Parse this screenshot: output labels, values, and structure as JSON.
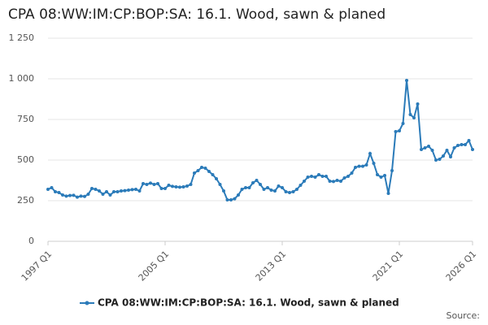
{
  "chart_data": {
    "type": "line",
    "title": "CPA 08:WW:IM:CP:BOP:SA: 16.1. Wood, sawn & planed",
    "source": "Source:",
    "categories": [
      "1997 Q1",
      null,
      null,
      null,
      null,
      null,
      null,
      null,
      null,
      null,
      null,
      null,
      null,
      null,
      null,
      null,
      null,
      null,
      null,
      null,
      null,
      null,
      null,
      null,
      null,
      null,
      null,
      null,
      null,
      null,
      null,
      null,
      "2005 Q1",
      null,
      null,
      null,
      null,
      null,
      null,
      null,
      null,
      null,
      null,
      null,
      null,
      null,
      null,
      null,
      null,
      null,
      null,
      null,
      null,
      null,
      null,
      null,
      null,
      null,
      null,
      null,
      null,
      null,
      null,
      null,
      "2013 Q1",
      null,
      null,
      null,
      null,
      null,
      null,
      null,
      null,
      null,
      null,
      null,
      null,
      null,
      null,
      null,
      null,
      null,
      null,
      null,
      null,
      null,
      null,
      null,
      null,
      null,
      null,
      null,
      null,
      null,
      null,
      null,
      "2021 Q1",
      null,
      null,
      null,
      null,
      null,
      null,
      null,
      null,
      null,
      null,
      null,
      null,
      null,
      null,
      null,
      null,
      null,
      null,
      null,
      "2026 Q1"
    ],
    "series": [
      {
        "name": "CPA 08:WW:IM:CP:BOP:SA: 16.1. Wood, sawn & planed",
        "color": "#2b7bb9",
        "values": [
          320,
          330,
          305,
          300,
          285,
          278,
          282,
          283,
          272,
          278,
          276,
          290,
          325,
          320,
          310,
          290,
          305,
          285,
          305,
          305,
          310,
          312,
          315,
          318,
          320,
          310,
          355,
          350,
          358,
          350,
          355,
          325,
          325,
          345,
          338,
          335,
          333,
          335,
          340,
          350,
          420,
          435,
          455,
          450,
          430,
          410,
          385,
          350,
          310,
          255,
          255,
          262,
          285,
          320,
          330,
          330,
          360,
          375,
          350,
          320,
          330,
          315,
          310,
          340,
          330,
          305,
          300,
          305,
          320,
          345,
          370,
          395,
          400,
          395,
          410,
          400,
          400,
          370,
          368,
          375,
          370,
          390,
          400,
          420,
          455,
          462,
          462,
          470,
          540,
          480,
          410,
          395,
          405,
          295,
          435,
          675,
          680,
          725,
          990,
          780,
          760,
          845,
          565,
          575,
          585,
          560,
          500,
          505,
          525,
          560,
          520,
          575,
          590,
          595,
          595,
          620,
          565
        ]
      }
    ],
    "ylim": [
      0,
      1250
    ],
    "yticks": [
      0,
      250,
      500,
      750,
      {
        "value": 1000,
        "label": "1 000"
      },
      {
        "value": 1250,
        "label": "1 250"
      }
    ],
    "grid": true
  }
}
